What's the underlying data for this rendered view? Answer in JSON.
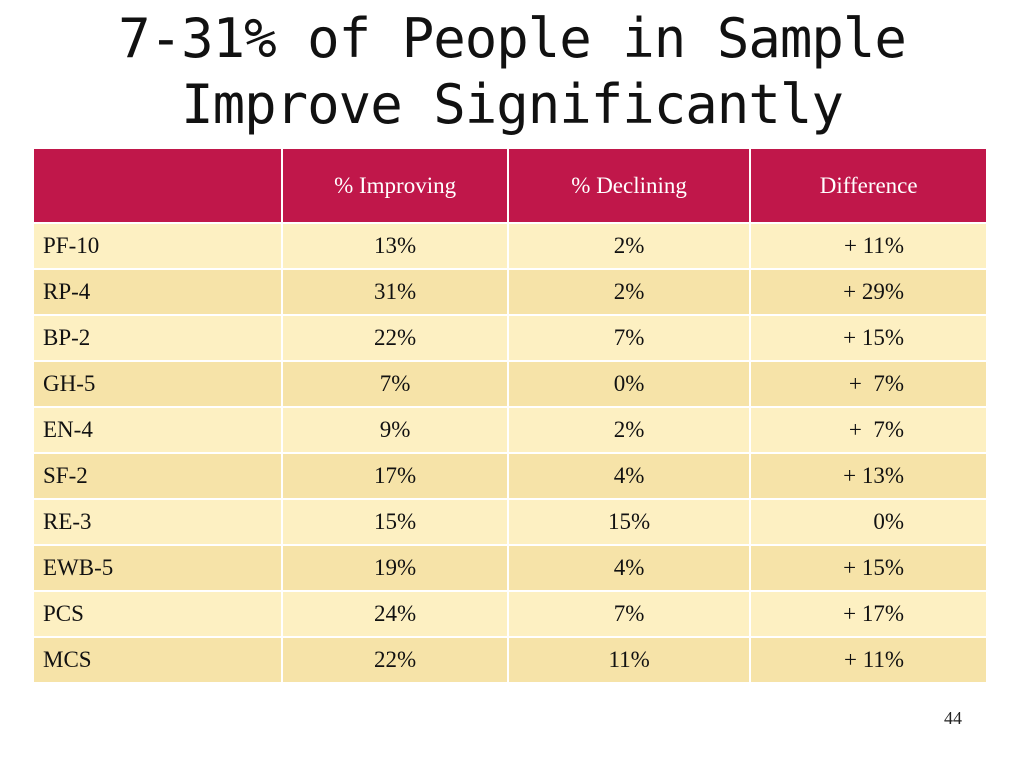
{
  "slide": {
    "title_line1": "7-31% of People in Sample",
    "title_line2": "Improve Significantly",
    "page_number": "44"
  },
  "table": {
    "headers": [
      "",
      "% Improving",
      "% Declining",
      "Difference"
    ],
    "rows": [
      {
        "label": "PF-10",
        "improving": "13%",
        "declining": "2%",
        "difference": "+ 11%"
      },
      {
        "label": "RP-4",
        "improving": "31%",
        "declining": "2%",
        "difference": "+ 29%"
      },
      {
        "label": "BP-2",
        "improving": "22%",
        "declining": "7%",
        "difference": "+ 15%"
      },
      {
        "label": "GH-5",
        "improving": "7%",
        "declining": "0%",
        "difference": "+  7%"
      },
      {
        "label": "EN-4",
        "improving": "9%",
        "declining": "2%",
        "difference": "+  7%"
      },
      {
        "label": "SF-2",
        "improving": "17%",
        "declining": "4%",
        "difference": "+ 13%"
      },
      {
        "label": "RE-3",
        "improving": "15%",
        "declining": "15%",
        "difference": "0%"
      },
      {
        "label": "EWB-5",
        "improving": "19%",
        "declining": "4%",
        "difference": "+ 15%"
      },
      {
        "label": "PCS",
        "improving": "24%",
        "declining": "7%",
        "difference": "+ 17%"
      },
      {
        "label": "MCS",
        "improving": "22%",
        "declining": "11%",
        "difference": "+ 11%"
      }
    ]
  },
  "colors": {
    "header_bg": "#c0174a",
    "header_text": "#ffffff",
    "row_light": "#fdf0c2",
    "row_dark": "#f6e3a8"
  }
}
